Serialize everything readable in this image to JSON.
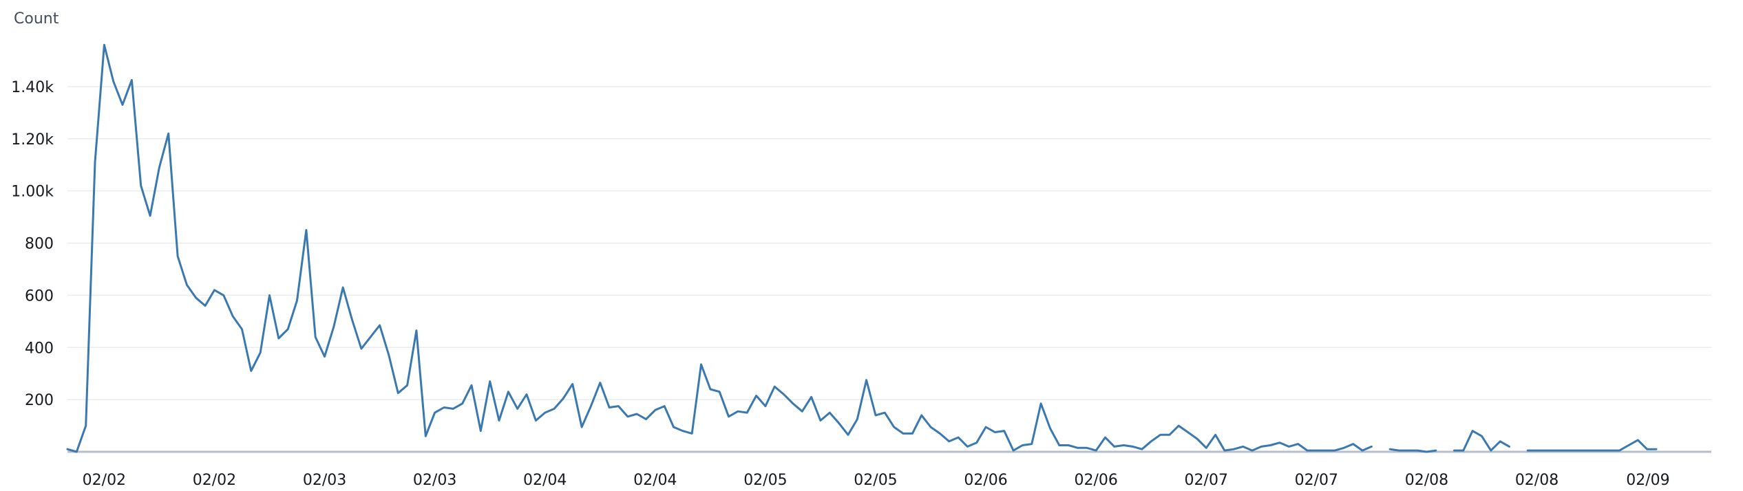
{
  "chart_data": {
    "type": "line",
    "ylabel": "Count",
    "ylim": [
      0,
      1600
    ],
    "y_ticks": [
      {
        "value": 200,
        "label": "200"
      },
      {
        "value": 400,
        "label": "400"
      },
      {
        "value": 600,
        "label": "600"
      },
      {
        "value": 800,
        "label": "800"
      },
      {
        "value": 1000,
        "label": "1.00k"
      },
      {
        "value": 1200,
        "label": "1.20k"
      },
      {
        "value": 1400,
        "label": "1.40k"
      }
    ],
    "x_range": [
      0,
      179
    ],
    "x_ticks": [
      {
        "x": 4,
        "label": "02/02"
      },
      {
        "x": 16,
        "label": "02/02"
      },
      {
        "x": 28,
        "label": "02/03"
      },
      {
        "x": 40,
        "label": "02/03"
      },
      {
        "x": 52,
        "label": "02/04"
      },
      {
        "x": 64,
        "label": "02/04"
      },
      {
        "x": 76,
        "label": "02/05"
      },
      {
        "x": 88,
        "label": "02/05"
      },
      {
        "x": 100,
        "label": "02/06"
      },
      {
        "x": 112,
        "label": "02/06"
      },
      {
        "x": 124,
        "label": "02/07"
      },
      {
        "x": 136,
        "label": "02/07"
      },
      {
        "x": 148,
        "label": "02/08"
      },
      {
        "x": 160,
        "label": "02/08"
      },
      {
        "x": 172,
        "label": "02/09"
      }
    ],
    "grid": true,
    "legend": "none",
    "color": "#3a78b0",
    "values": [
      10,
      0,
      100,
      1110,
      1560,
      1420,
      1330,
      1425,
      1020,
      905,
      1090,
      1220,
      750,
      640,
      590,
      560,
      620,
      600,
      520,
      470,
      310,
      380,
      600,
      435,
      470,
      580,
      850,
      440,
      365,
      480,
      630,
      505,
      395,
      440,
      485,
      370,
      225,
      255,
      465,
      60,
      150,
      170,
      165,
      185,
      255,
      80,
      270,
      120,
      230,
      165,
      220,
      120,
      150,
      165,
      205,
      260,
      95,
      175,
      265,
      170,
      175,
      135,
      145,
      125,
      160,
      175,
      95,
      80,
      70,
      335,
      240,
      230,
      135,
      155,
      150,
      215,
      175,
      250,
      220,
      185,
      155,
      210,
      120,
      150,
      110,
      65,
      125,
      275,
      140,
      150,
      95,
      70,
      70,
      140,
      95,
      70,
      40,
      55,
      20,
      35,
      95,
      75,
      80,
      5,
      25,
      30,
      185,
      90,
      25,
      25,
      15,
      15,
      5,
      55,
      20,
      25,
      20,
      10,
      40,
      65,
      65,
      100,
      75,
      50,
      15,
      65,
      5,
      10,
      20,
      5,
      20,
      25,
      35,
      20,
      30,
      5,
      5,
      5,
      5,
      15,
      30,
      5,
      20,
      null,
      10,
      5,
      5,
      5,
      0,
      5,
      null,
      5,
      5,
      80,
      60,
      5,
      40,
      20,
      null,
      5,
      5,
      5,
      5,
      5,
      5,
      5,
      5,
      5,
      5,
      5,
      25,
      45,
      10,
      10
    ]
  }
}
